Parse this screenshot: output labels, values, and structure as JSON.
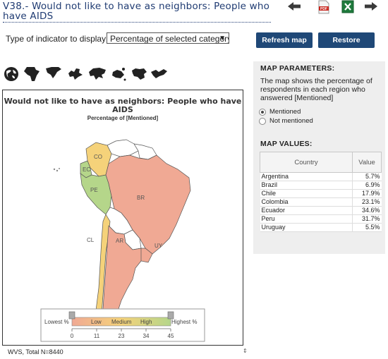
{
  "title": "V38.- Would not like to have as neighbors: People who have AIDS",
  "toolbar": {
    "icons": [
      "back-arrow-icon",
      "pdf-icon",
      "excel-icon",
      "forward-arrow-icon"
    ],
    "pdf_text": "PDF"
  },
  "indicator": {
    "label": "Type of indicator to display:",
    "selected": "Percentage of selected category"
  },
  "buttons": {
    "refresh": "Refresh map",
    "restore": "Restore defaults"
  },
  "map": {
    "title": "Would not like to have as neighbors: People who have AIDS",
    "subtitle": "Percentage of [Mentioned]",
    "labels": {
      "CO": "CO",
      "EC": "EC",
      "PE": "PE",
      "BR": "BR",
      "CL": "CL",
      "AR": "AR",
      "UY": "UY"
    },
    "colors": {
      "low": "#f0a994",
      "medium": "#f5d27a",
      "high": "#b5d68a",
      "no_data": "#ffffff"
    },
    "legend": {
      "lowest": "Lowest %",
      "highest": "Highest %",
      "bands": [
        "Low",
        "Medium",
        "High"
      ],
      "ticks": [
        "0",
        "11",
        "23",
        "34",
        "45"
      ]
    }
  },
  "params": {
    "heading": "MAP PARAMETERS:",
    "description": "The map shows the percentage of respondents in each region who answered [Mentioned]",
    "options": [
      {
        "label": "Mentioned",
        "selected": true
      },
      {
        "label": "Not mentioned",
        "selected": false
      }
    ]
  },
  "values": {
    "heading": "MAP VALUES:",
    "columns": [
      "Country",
      "Value"
    ],
    "rows": [
      {
        "country": "Argentina",
        "value": "5.7%"
      },
      {
        "country": "Brazil",
        "value": "6.9%"
      },
      {
        "country": "Chile",
        "value": "17.9%"
      },
      {
        "country": "Colombia",
        "value": "23.1%"
      },
      {
        "country": "Ecuador",
        "value": "34.6%"
      },
      {
        "country": "Peru",
        "value": "31.7%"
      },
      {
        "country": "Uruguay",
        "value": "5.5%"
      }
    ]
  },
  "footer": {
    "text": "WVS, Total N=8440"
  }
}
